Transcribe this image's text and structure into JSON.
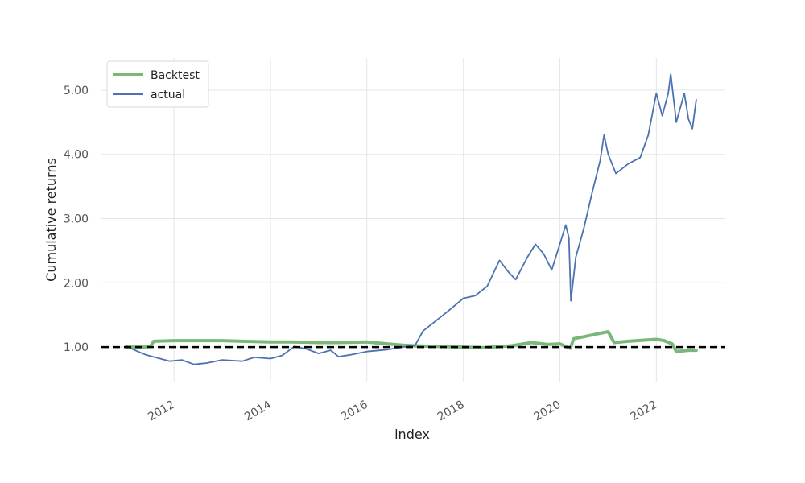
{
  "chart_data": {
    "type": "line",
    "title": "",
    "xlabel": "index",
    "ylabel": "Cumulative returns",
    "xlim": [
      "2010-07-01",
      "2023-06-01"
    ],
    "ylim": [
      0.45,
      5.5
    ],
    "x_ticks": [
      "2012",
      "2014",
      "2016",
      "2018",
      "2020",
      "2022"
    ],
    "y_ticks": [
      "1.00",
      "2.00",
      "3.00",
      "4.00",
      "5.00"
    ],
    "grid": true,
    "legend_position": "top-left",
    "reference_line": {
      "y": 1.0,
      "style": "dashed",
      "color": "#000000"
    },
    "series": [
      {
        "name": "Backtest",
        "color": "#7ab87a",
        "points": [
          [
            "2011-01-03",
            1.0
          ],
          [
            "2011-06-01",
            1.0
          ],
          [
            "2011-07-10",
            1.02
          ],
          [
            "2011-08-01",
            1.09
          ],
          [
            "2012-01-01",
            1.1
          ],
          [
            "2012-06-01",
            1.1
          ],
          [
            "2013-01-01",
            1.1
          ],
          [
            "2013-06-01",
            1.09
          ],
          [
            "2014-01-01",
            1.08
          ],
          [
            "2014-06-01",
            1.08
          ],
          [
            "2015-01-01",
            1.07
          ],
          [
            "2015-06-01",
            1.07
          ],
          [
            "2016-01-01",
            1.08
          ],
          [
            "2016-06-01",
            1.05
          ],
          [
            "2016-10-01",
            1.03
          ],
          [
            "2017-01-01",
            1.02
          ],
          [
            "2017-06-01",
            1.01
          ],
          [
            "2018-01-01",
            1.0
          ],
          [
            "2018-06-01",
            0.99
          ],
          [
            "2019-01-01",
            1.02
          ],
          [
            "2019-06-01",
            1.07
          ],
          [
            "2019-10-01",
            1.04
          ],
          [
            "2020-01-01",
            1.05
          ],
          [
            "2020-03-20",
            0.98
          ],
          [
            "2020-04-15",
            1.13
          ],
          [
            "2020-07-01",
            1.16
          ],
          [
            "2020-10-01",
            1.2
          ],
          [
            "2021-01-01",
            1.24
          ],
          [
            "2021-02-15",
            1.07
          ],
          [
            "2021-06-01",
            1.09
          ],
          [
            "2022-01-01",
            1.12
          ],
          [
            "2022-03-01",
            1.1
          ],
          [
            "2022-05-01",
            1.05
          ],
          [
            "2022-06-01",
            0.93
          ],
          [
            "2022-09-01",
            0.95
          ],
          [
            "2022-10-30",
            0.95
          ]
        ]
      },
      {
        "name": "actual",
        "color": "#4c72b0",
        "points": [
          [
            "2011-01-03",
            1.02
          ],
          [
            "2011-03-01",
            0.96
          ],
          [
            "2011-06-01",
            0.88
          ],
          [
            "2011-09-01",
            0.83
          ],
          [
            "2011-12-01",
            0.78
          ],
          [
            "2012-03-01",
            0.8
          ],
          [
            "2012-06-01",
            0.73
          ],
          [
            "2012-09-01",
            0.75
          ],
          [
            "2013-01-01",
            0.8
          ],
          [
            "2013-06-01",
            0.78
          ],
          [
            "2013-09-01",
            0.84
          ],
          [
            "2014-01-01",
            0.82
          ],
          [
            "2014-04-01",
            0.87
          ],
          [
            "2014-07-01",
            1.01
          ],
          [
            "2014-10-01",
            0.97
          ],
          [
            "2015-01-01",
            0.9
          ],
          [
            "2015-04-01",
            0.95
          ],
          [
            "2015-06-01",
            0.85
          ],
          [
            "2015-09-01",
            0.88
          ],
          [
            "2016-01-01",
            0.93
          ],
          [
            "2016-06-01",
            0.96
          ],
          [
            "2016-10-01",
            1.0
          ],
          [
            "2017-01-01",
            1.03
          ],
          [
            "2017-03-01",
            1.25
          ],
          [
            "2017-06-01",
            1.4
          ],
          [
            "2017-09-01",
            1.55
          ],
          [
            "2018-01-01",
            1.76
          ],
          [
            "2018-04-01",
            1.8
          ],
          [
            "2018-07-01",
            1.95
          ],
          [
            "2018-10-01",
            2.35
          ],
          [
            "2018-12-15",
            2.15
          ],
          [
            "2019-02-01",
            2.05
          ],
          [
            "2019-05-01",
            2.4
          ],
          [
            "2019-07-01",
            2.6
          ],
          [
            "2019-09-01",
            2.45
          ],
          [
            "2019-11-01",
            2.2
          ],
          [
            "2020-01-01",
            2.6
          ],
          [
            "2020-02-15",
            2.9
          ],
          [
            "2020-03-10",
            2.7
          ],
          [
            "2020-03-25",
            1.72
          ],
          [
            "2020-05-01",
            2.4
          ],
          [
            "2020-07-01",
            2.85
          ],
          [
            "2020-09-01",
            3.4
          ],
          [
            "2020-11-01",
            3.9
          ],
          [
            "2020-12-01",
            4.3
          ],
          [
            "2021-01-01",
            4.0
          ],
          [
            "2021-03-01",
            3.7
          ],
          [
            "2021-06-01",
            3.85
          ],
          [
            "2021-09-01",
            3.95
          ],
          [
            "2021-11-01",
            4.3
          ],
          [
            "2022-01-01",
            4.95
          ],
          [
            "2022-02-15",
            4.6
          ],
          [
            "2022-04-01",
            4.95
          ],
          [
            "2022-04-20",
            5.25
          ],
          [
            "2022-06-01",
            4.5
          ],
          [
            "2022-08-01",
            4.95
          ],
          [
            "2022-09-01",
            4.55
          ],
          [
            "2022-10-01",
            4.4
          ],
          [
            "2022-10-30",
            4.85
          ]
        ]
      }
    ]
  }
}
